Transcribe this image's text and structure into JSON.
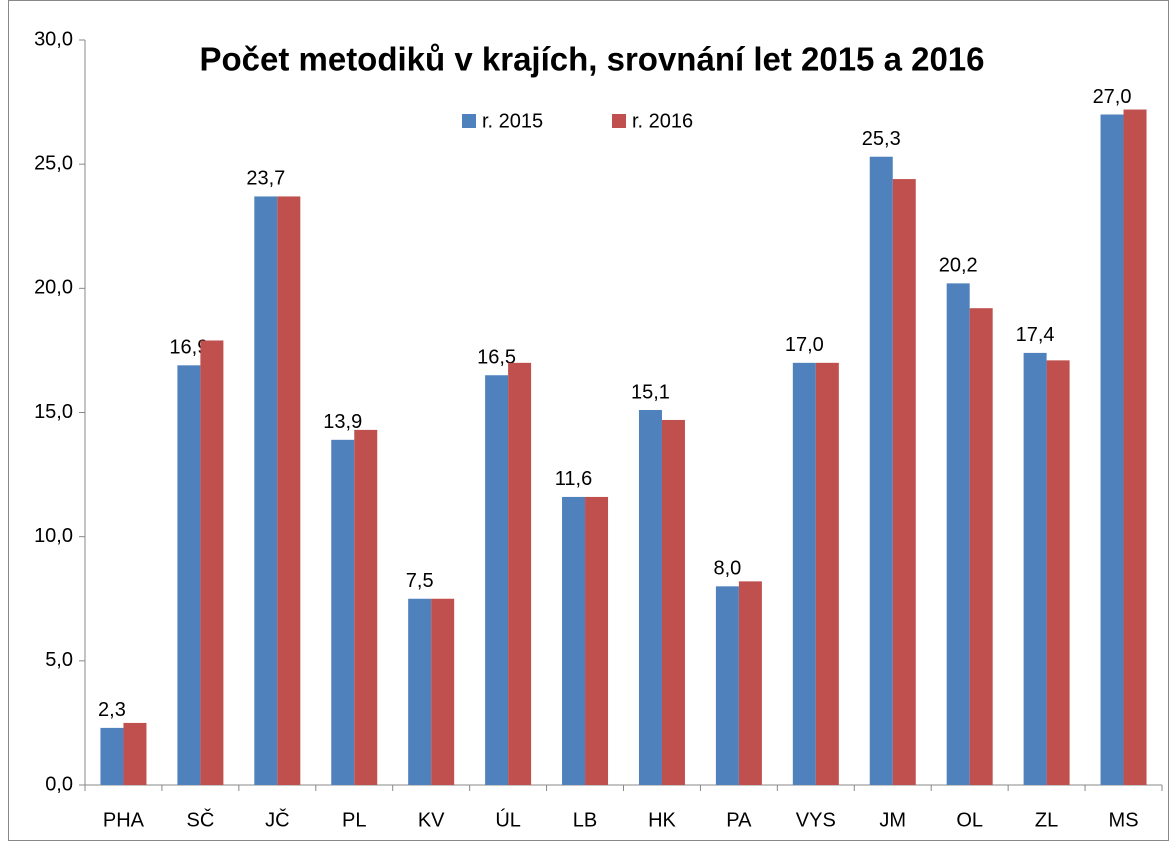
{
  "chart_data": {
    "type": "bar",
    "title": "Počet metodiků v krajích, srovnání let 2015 a 2016",
    "categories": [
      "PHA",
      "SČ",
      "JČ",
      "PL",
      "KV",
      "ÚL",
      "LB",
      "HK",
      "PA",
      "VYS",
      "JM",
      "OL",
      "ZL",
      "MS"
    ],
    "series": [
      {
        "name": "r. 2015",
        "color": "#4f81bd",
        "values": [
          2.3,
          16.9,
          23.7,
          13.9,
          7.5,
          16.5,
          11.6,
          15.1,
          8.0,
          17.0,
          25.3,
          20.2,
          17.4,
          27.0
        ],
        "value_labels": [
          "2,3",
          "16,9",
          "23,7",
          "13,9",
          "7,5",
          "16,5",
          "11,6",
          "15,1",
          "8,0",
          "17,0",
          "25,3",
          "20,2",
          "17,4",
          "27,0"
        ]
      },
      {
        "name": "r. 2016",
        "color": "#c0504d",
        "values": [
          2.5,
          17.9,
          23.7,
          14.3,
          7.5,
          17.0,
          11.6,
          14.7,
          8.2,
          17.0,
          24.4,
          19.2,
          17.1,
          27.2
        ]
      }
    ],
    "ylim": [
      0,
      30
    ],
    "yticks": [
      {
        "value": 0,
        "label": "0,0"
      },
      {
        "value": 5,
        "label": "5,0"
      },
      {
        "value": 10,
        "label": "10,0"
      },
      {
        "value": 15,
        "label": "15,0"
      },
      {
        "value": 20,
        "label": "20,0"
      },
      {
        "value": 25,
        "label": "25,0"
      },
      {
        "value": 30,
        "label": "30,0"
      }
    ],
    "grid": false,
    "legend": "top"
  }
}
